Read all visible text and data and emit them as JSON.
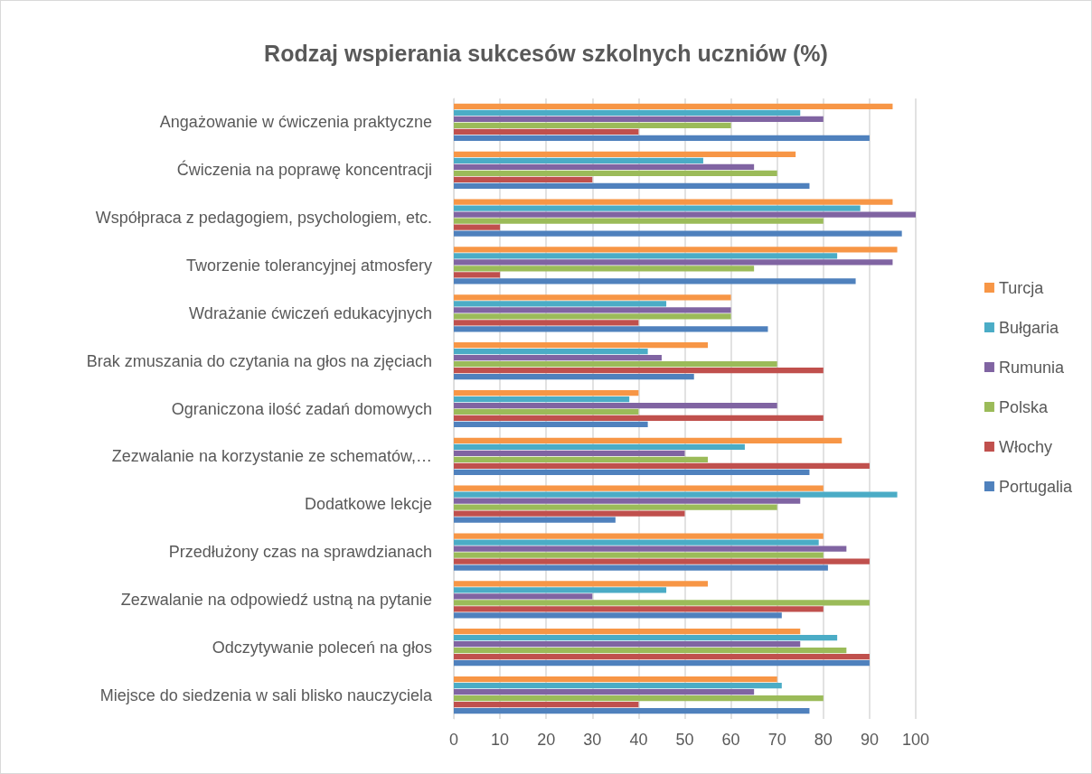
{
  "chart_data": {
    "type": "bar",
    "orientation": "horizontal",
    "title": "Rodzaj wspierania sukcesów szkolnych uczniów (%)",
    "categories": [
      "Angażowanie w ćwiczenia praktyczne",
      "Ćwiczenia na poprawę koncentracji",
      "Współpraca z pedagogiem, psychologiem, etc.",
      "Tworzenie tolerancyjnej atmosfery",
      "Wdrażanie ćwiczeń edukacyjnych",
      "Brak zmuszania do czytania na głos na zjęciach",
      "Ograniczona ilość zadań domowych",
      "Zezwalanie na korzystanie ze schematów,…",
      "Dodatkowe lekcje",
      "Przedłużony czas na sprawdzianach",
      "Zezwalanie na odpowiedź ustną na pytanie",
      "Odczytywanie poleceń na głos",
      "Miejsce do siedzenia w sali blisko nauczyciela"
    ],
    "series": [
      {
        "name": "Turcja",
        "color": "#f79646",
        "values": [
          95,
          74,
          95,
          96,
          60,
          55,
          40,
          84,
          80,
          80,
          55,
          75,
          70
        ]
      },
      {
        "name": "Bułgaria",
        "color": "#4bacc6",
        "values": [
          75,
          54,
          88,
          83,
          46,
          42,
          38,
          63,
          96,
          79,
          46,
          83,
          71
        ]
      },
      {
        "name": "Rumunia",
        "color": "#8064a2",
        "values": [
          80,
          65,
          100,
          95,
          60,
          45,
          70,
          50,
          75,
          85,
          30,
          75,
          65
        ]
      },
      {
        "name": "Polska",
        "color": "#9bbb59",
        "values": [
          60,
          70,
          80,
          65,
          60,
          70,
          40,
          55,
          70,
          80,
          90,
          85,
          80
        ]
      },
      {
        "name": "Włochy",
        "color": "#c0504d",
        "values": [
          40,
          30,
          10,
          10,
          40,
          80,
          80,
          90,
          50,
          90,
          80,
          90,
          40
        ]
      },
      {
        "name": "Portugalia",
        "color": "#4f81bd",
        "values": [
          90,
          77,
          97,
          87,
          68,
          52,
          42,
          77,
          35,
          81,
          71,
          90,
          77
        ]
      }
    ],
    "xlim": [
      0,
      100
    ],
    "xticks": [
      0,
      10,
      20,
      30,
      40,
      50,
      60,
      70,
      80,
      90,
      100
    ],
    "grid": "x",
    "legend": "right"
  }
}
